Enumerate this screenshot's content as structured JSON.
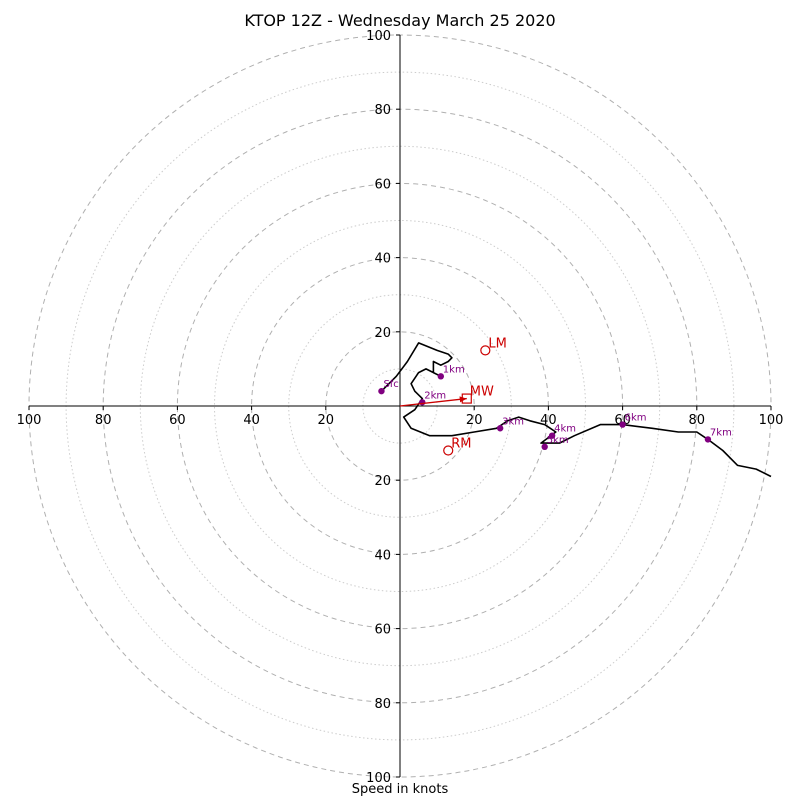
{
  "title": "KTOP 12Z - Wednesday March 25 2020",
  "xlabel": "Speed in knots",
  "chart_data": {
    "type": "line",
    "title": "KTOP 12Z - Wednesday March 25 2020",
    "xlabel": "Speed in knots",
    "ylabel": "",
    "xlim": [
      -100,
      100
    ],
    "ylim": [
      -100,
      100
    ],
    "ring_major": [
      20,
      40,
      60,
      80,
      100
    ],
    "ring_minor": [
      10,
      30,
      50,
      70,
      90
    ],
    "axis_ticks": {
      "left": [
        "100",
        "80",
        "60",
        "40",
        "20"
      ],
      "right": [
        "20",
        "40",
        "60",
        "80",
        "100"
      ],
      "top": [
        "100",
        "80",
        "60",
        "40",
        "20"
      ],
      "bottom": [
        "20",
        "40",
        "60",
        "80",
        "100"
      ]
    },
    "hodograph": {
      "u": [
        -5,
        -1,
        2,
        5,
        10,
        13,
        14,
        13,
        11,
        9,
        9,
        11,
        7,
        5,
        3,
        4,
        6,
        4,
        1,
        3,
        8,
        14,
        20,
        26,
        29,
        32,
        35,
        39,
        42,
        38,
        43,
        47,
        54,
        60,
        68,
        75,
        80,
        83,
        87,
        91,
        96,
        100
      ],
      "v": [
        4,
        8,
        12,
        17,
        15,
        14,
        13,
        12,
        11,
        12,
        9,
        8,
        10,
        9,
        6,
        4,
        2,
        -1,
        -3,
        -6,
        -8,
        -8,
        -7,
        -6,
        -4,
        -3,
        -4,
        -5,
        -7,
        -10,
        -10,
        -8,
        -5,
        -5,
        -6,
        -7,
        -7,
        -9,
        -12,
        -16,
        -17,
        -19
      ],
      "color": "#000000"
    },
    "height_markers": [
      {
        "label": "Sfc",
        "u": -5,
        "v": 4
      },
      {
        "label": "1km",
        "u": 11,
        "v": 8
      },
      {
        "label": "2km",
        "u": 6,
        "v": 1
      },
      {
        "label": "3km",
        "u": 27,
        "v": -6
      },
      {
        "label": "4km",
        "u": 41,
        "v": -8
      },
      {
        "label": "5km",
        "u": 39,
        "v": -11
      },
      {
        "label": "6km",
        "u": 60,
        "v": -5
      },
      {
        "label": "7km",
        "u": 83,
        "v": -9
      }
    ],
    "marker_color": "#800080",
    "storm_motion": [
      {
        "label": "LM",
        "u": 23,
        "v": 15,
        "shape": "circle"
      },
      {
        "label": "RM",
        "u": 13,
        "v": -12,
        "shape": "circle"
      },
      {
        "label": "MW",
        "u": 18,
        "v": 2,
        "shape": "square"
      }
    ],
    "storm_color": "#cc0000",
    "mean_wind_vector": {
      "from": [
        0,
        0
      ],
      "to": [
        18,
        2
      ],
      "color": "#cc0000"
    },
    "grid": true
  }
}
